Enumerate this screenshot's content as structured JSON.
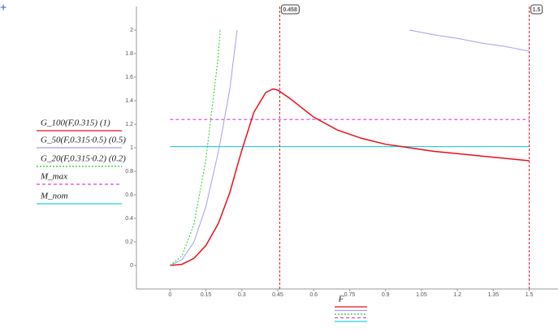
{
  "corner_symbol": "+",
  "chart_data": {
    "type": "line",
    "x_label": "F",
    "x": [
      0,
      0.05,
      0.1,
      0.15,
      0.2,
      0.21,
      0.25,
      0.28,
      0.3,
      0.35,
      0.4,
      0.43,
      0.45,
      0.5,
      0.6,
      0.7,
      0.8,
      0.9,
      1.0,
      1.1,
      1.2,
      1.3,
      1.4,
      1.5
    ],
    "series": [
      {
        "name": "G_100(F,0.315) (1)",
        "color": "#e8101a",
        "dash": "solid",
        "values": [
          0,
          0.01,
          0.06,
          0.17,
          0.35,
          0.4,
          0.62,
          0.84,
          0.98,
          1.3,
          1.47,
          1.5,
          1.49,
          1.42,
          1.26,
          1.15,
          1.08,
          1.03,
          1.0,
          0.97,
          0.95,
          0.93,
          0.91,
          0.89
        ]
      },
      {
        "name": "G_50(F,0.315·0.5) (0.5)",
        "color": "#a0a0ee",
        "dash": "solid",
        "values": [
          0,
          0.05,
          0.2,
          0.5,
          0.95,
          1.05,
          1.5,
          2.0,
          null,
          null,
          null,
          null,
          null,
          null,
          null,
          null,
          null,
          null,
          2.0,
          1.96,
          1.93,
          1.89,
          1.86,
          1.82
        ]
      },
      {
        "name": "G_20(F,0.315·0.2) (0.2)",
        "color": "#22cc22",
        "dash": "dotted",
        "values": [
          0,
          0.08,
          0.35,
          0.9,
          1.75,
          2.0,
          null,
          null,
          null,
          null,
          null,
          null,
          null,
          null,
          null,
          null,
          null,
          null,
          null,
          null,
          null,
          null,
          null,
          null
        ]
      }
    ],
    "hlines": [
      {
        "name": "M_max",
        "color": "#e040e0",
        "dash": "dashed",
        "value": 1.24
      },
      {
        "name": "M_nom",
        "color": "#22d0e0",
        "dash": "solid",
        "value": 1.01
      }
    ],
    "vlines": [
      0.458,
      1.5
    ],
    "vline_color": "#e8101a",
    "xlim": [
      -0.14,
      1.62
    ],
    "ylim": [
      -0.2,
      2.2
    ],
    "xticks": [
      0,
      0.15,
      0.3,
      0.45,
      0.6,
      0.75,
      0.9,
      1.05,
      1.2,
      1.35,
      1.5
    ],
    "yticks": [
      0,
      0.2,
      0.4,
      0.6,
      0.8,
      1,
      1.2,
      1.4,
      1.6,
      1.8,
      2
    ]
  }
}
